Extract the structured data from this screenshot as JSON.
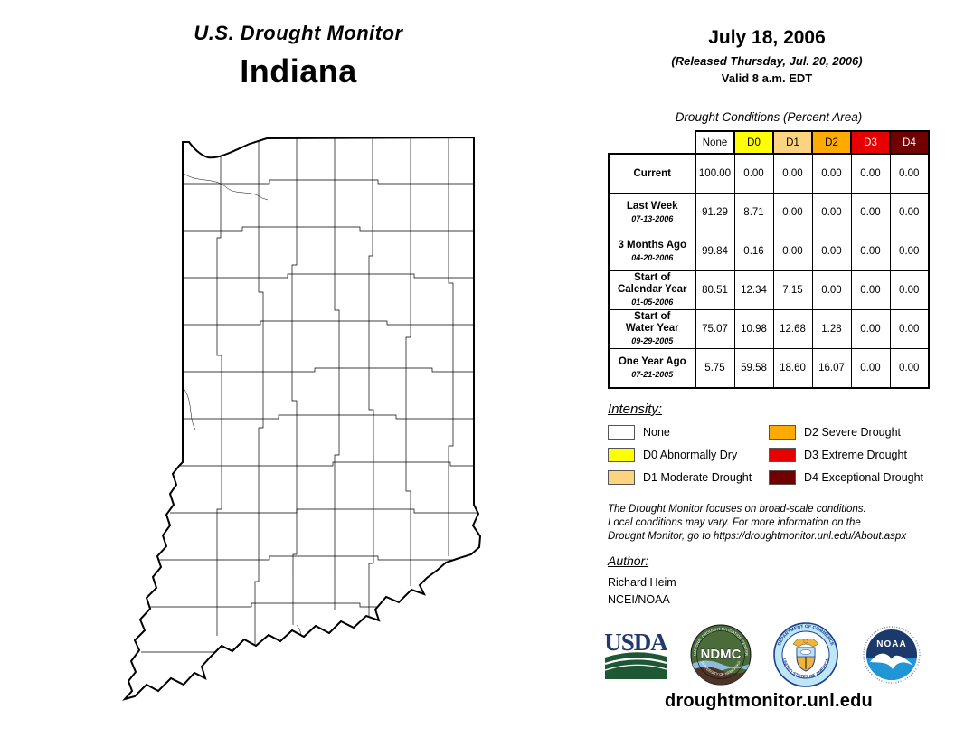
{
  "header": {
    "title": "U.S. Drought Monitor",
    "region": "Indiana",
    "date": "July 18, 2006",
    "released": "(Released Thursday, Jul. 20, 2006)",
    "valid": "Valid 8 a.m. EDT"
  },
  "map": {
    "region": "Indiana",
    "fill": "#FFFFFF",
    "outline": "#000000"
  },
  "table": {
    "title": "Drought Conditions (Percent Area)",
    "columns": [
      {
        "label": "None",
        "bg": "#FFFFFF",
        "fg": "#000000"
      },
      {
        "label": "D0",
        "bg": "#FFFF00",
        "fg": "#000000"
      },
      {
        "label": "D1",
        "bg": "#FCD37F",
        "fg": "#000000"
      },
      {
        "label": "D2",
        "bg": "#FFAA00",
        "fg": "#000000"
      },
      {
        "label": "D3",
        "bg": "#E60000",
        "fg": "#FFFFFF"
      },
      {
        "label": "D4",
        "bg": "#730000",
        "fg": "#FFFFFF"
      }
    ],
    "rows": [
      {
        "label": "Current",
        "date": "",
        "values": [
          "100.00",
          "0.00",
          "0.00",
          "0.00",
          "0.00",
          "0.00"
        ]
      },
      {
        "label": "Last Week",
        "date": "07-13-2006",
        "values": [
          "91.29",
          "8.71",
          "0.00",
          "0.00",
          "0.00",
          "0.00"
        ]
      },
      {
        "label": "3 Months Ago",
        "date": "04-20-2006",
        "values": [
          "99.84",
          "0.16",
          "0.00",
          "0.00",
          "0.00",
          "0.00"
        ]
      },
      {
        "label": "Start of\nCalendar Year",
        "date": "01-05-2006",
        "values": [
          "80.51",
          "12.34",
          "7.15",
          "0.00",
          "0.00",
          "0.00"
        ]
      },
      {
        "label": "Start of\nWater Year",
        "date": "09-29-2005",
        "values": [
          "75.07",
          "10.98",
          "12.68",
          "1.28",
          "0.00",
          "0.00"
        ]
      },
      {
        "label": "One Year Ago",
        "date": "07-21-2005",
        "values": [
          "5.75",
          "59.58",
          "18.60",
          "16.07",
          "0.00",
          "0.00"
        ]
      }
    ]
  },
  "legend": {
    "title": "Intensity:",
    "items": [
      {
        "label": "None",
        "color": "#FFFFFF"
      },
      {
        "label": "D0 Abnormally Dry",
        "color": "#FFFF00"
      },
      {
        "label": "D1 Moderate Drought",
        "color": "#FCD37F"
      },
      {
        "label": "D2 Severe Drought",
        "color": "#FFAA00"
      },
      {
        "label": "D3 Extreme Drought",
        "color": "#E60000"
      },
      {
        "label": "D4 Exceptional Drought",
        "color": "#730000"
      }
    ]
  },
  "disclaimer": {
    "lines": [
      "The Drought Monitor focuses on broad-scale conditions.",
      "Local conditions may vary. For more information on the",
      "Drought Monitor, go to https://droughtmonitor.unl.edu/About.aspx"
    ]
  },
  "author": {
    "heading": "Author:",
    "name": "Richard Heim",
    "org": "NCEI/NOAA"
  },
  "logos": {
    "usda": {
      "text": "USDA"
    },
    "ndmc": {
      "text": "NDMC",
      "ring_top": "NATIONAL DROUGHT MITIGATION CENTER",
      "ring_bottom": "UNIVERSITY OF NEBRASKA"
    },
    "doc": {
      "ring_top": "DEPARTMENT OF COMMERCE",
      "ring_bottom": "UNITED STATES OF AMERICA"
    },
    "noaa": {
      "text": "NOAA"
    }
  },
  "footer": {
    "website": "droughtmonitor.unl.edu"
  }
}
